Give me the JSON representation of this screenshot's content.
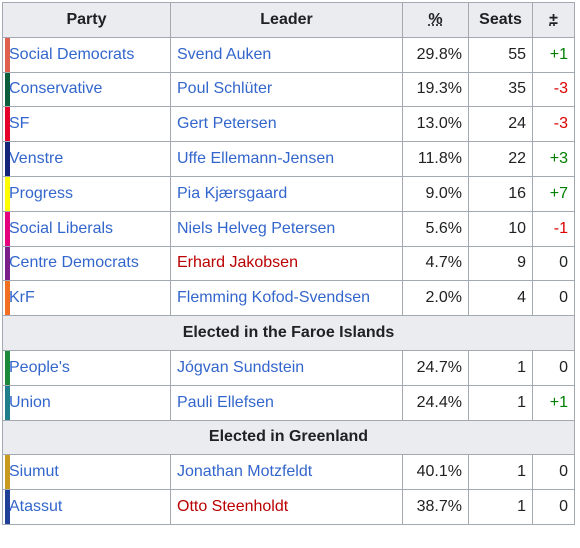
{
  "headers": {
    "party": "Party",
    "leader": "Leader",
    "pct": "%",
    "seats": "Seats",
    "change": "±"
  },
  "groups": [
    {
      "title": "",
      "rows": [
        {
          "party": "Social Democrats",
          "color": "#E0604F",
          "leader": "Svend Auken",
          "leader_style": "link",
          "pct": "29.8%",
          "seats": "55",
          "change": "+1",
          "change_sign": "pos"
        },
        {
          "party": "Conservative",
          "color": "#0B5E3C",
          "leader": "Poul Schlüter",
          "leader_style": "link",
          "pct": "19.3%",
          "seats": "35",
          "change": "-3",
          "change_sign": "neg"
        },
        {
          "party": "SF",
          "color": "#E4002B",
          "leader": "Gert Petersen",
          "leader_style": "link",
          "pct": "13.0%",
          "seats": "24",
          "change": "-3",
          "change_sign": "neg"
        },
        {
          "party": "Venstre",
          "color": "#13247B",
          "leader": "Uffe Ellemann-Jensen",
          "leader_style": "link",
          "pct": "11.8%",
          "seats": "22",
          "change": "+3",
          "change_sign": "pos"
        },
        {
          "party": "Progress",
          "color": "#FFFF00",
          "leader": "Pia Kjærsgaard",
          "leader_style": "link",
          "pct": "9.0%",
          "seats": "16",
          "change": "+7",
          "change_sign": "pos"
        },
        {
          "party": "Social Liberals",
          "color": "#E5007D",
          "leader": "Niels Helveg Petersen",
          "leader_style": "link",
          "pct": "5.6%",
          "seats": "10",
          "change": "-1",
          "change_sign": "neg"
        },
        {
          "party": "Centre Democrats",
          "color": "#7A1F8A",
          "leader": "Erhard Jakobsen",
          "leader_style": "red",
          "pct": "4.7%",
          "seats": "9",
          "change": "0",
          "change_sign": "zero"
        },
        {
          "party": "KrF",
          "color": "#F26F21",
          "leader": "Flemming Kofod-Svendsen",
          "leader_style": "link",
          "pct": "2.0%",
          "seats": "4",
          "change": "0",
          "change_sign": "zero"
        }
      ]
    },
    {
      "title": "Elected in the Faroe Islands",
      "rows": [
        {
          "party": "People's",
          "color": "#1B8A3A",
          "leader": "Jógvan Sundstein",
          "leader_style": "link",
          "pct": "24.7%",
          "seats": "1",
          "change": "0",
          "change_sign": "zero"
        },
        {
          "party": "Union",
          "color": "#1E7E8C",
          "leader": "Pauli Ellefsen",
          "leader_style": "link",
          "pct": "24.4%",
          "seats": "1",
          "change": "+1",
          "change_sign": "pos"
        }
      ]
    },
    {
      "title": "Elected in Greenland",
      "rows": [
        {
          "party": "Siumut",
          "color": "#C89B1E",
          "leader": "Jonathan Motzfeldt",
          "leader_style": "link",
          "pct": "40.1%",
          "seats": "1",
          "change": "0",
          "change_sign": "zero"
        },
        {
          "party": "Atassut",
          "color": "#1F3F99",
          "leader": "Otto Steenholdt",
          "leader_style": "red",
          "pct": "38.7%",
          "seats": "1",
          "change": "0",
          "change_sign": "zero"
        }
      ]
    }
  ]
}
